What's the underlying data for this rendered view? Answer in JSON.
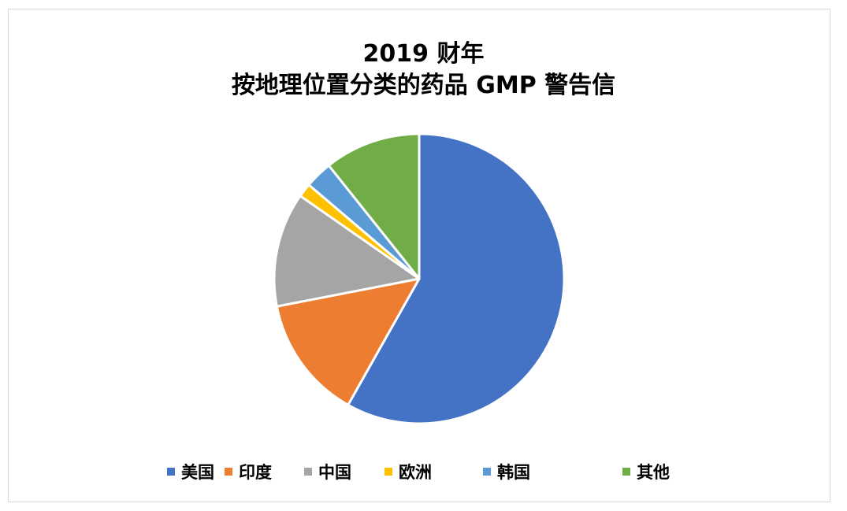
{
  "chart_data": {
    "type": "pie",
    "title_lines": [
      "2019 财年",
      "按地理位置分类的药品 GMP 警告信"
    ],
    "series": [
      {
        "name": "美国",
        "value": 57.0,
        "color": "#4472C4"
      },
      {
        "name": "印度",
        "value": 13.5,
        "color": "#ED7D31"
      },
      {
        "name": "中国",
        "value": 12.5,
        "color": "#A5A5A5"
      },
      {
        "name": "欧洲",
        "value": 1.5,
        "color": "#FFC000"
      },
      {
        "name": "韩国",
        "value": 3.0,
        "color": "#5B9BD5"
      },
      {
        "name": "其他",
        "value": 10.5,
        "color": "#70AD47"
      }
    ],
    "legend_position": "bottom",
    "start_angle": "12 o'clock, clockwise"
  }
}
